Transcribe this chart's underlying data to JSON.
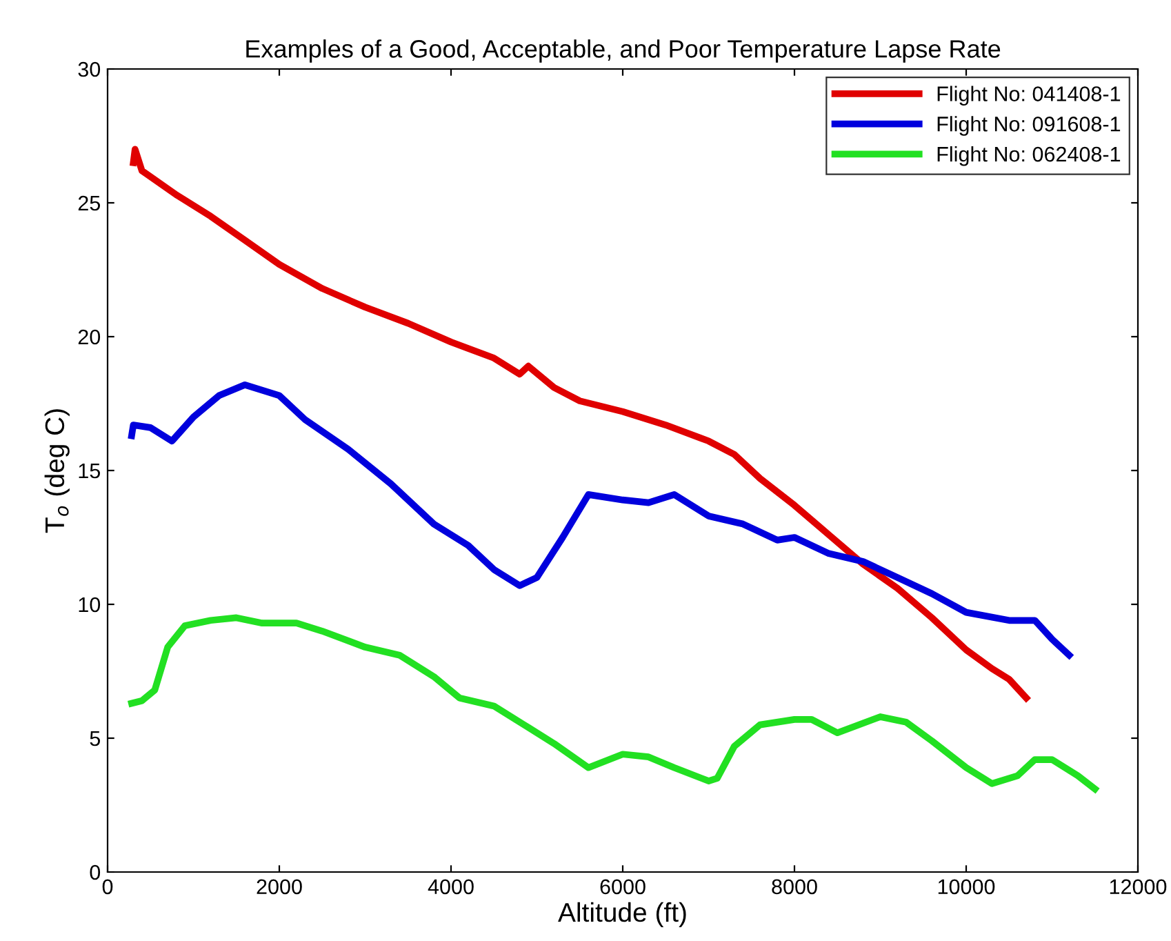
{
  "chart_data": {
    "type": "line",
    "title": "Examples of a Good, Acceptable, and Poor Temperature Lapse Rate",
    "xlabel": "Altitude (ft)",
    "ylabel": "T$_{o}$ (deg C)",
    "xlim": [
      0,
      12000
    ],
    "xticks": [
      0,
      2000,
      4000,
      6000,
      8000,
      10000,
      12000
    ],
    "ylim": [
      0,
      30
    ],
    "yticks": [
      0,
      5,
      10,
      15,
      20,
      25,
      30
    ],
    "grid": false,
    "legend": "top right",
    "line_style": "solid",
    "marker": "none",
    "series": [
      {
        "name": "Flight No: 041408-1",
        "color": "#e00000",
        "x": [
          300,
          320,
          400,
          800,
          1200,
          1600,
          2000,
          2500,
          3000,
          3500,
          4000,
          4500,
          4800,
          4900,
          5200,
          5500,
          6000,
          6500,
          7000,
          7300,
          7600,
          8000,
          8400,
          8800,
          9200,
          9600,
          10000,
          10300,
          10500,
          10700
        ],
        "values": [
          26.5,
          27.0,
          26.2,
          25.3,
          24.5,
          23.6,
          22.7,
          21.8,
          21.1,
          20.5,
          19.8,
          19.2,
          18.6,
          18.9,
          18.1,
          17.6,
          17.2,
          16.7,
          16.1,
          15.6,
          14.7,
          13.7,
          12.6,
          11.5,
          10.6,
          9.5,
          8.3,
          7.6,
          7.2,
          6.5
        ]
      },
      {
        "name": "Flight No: 091608-1",
        "color": "#0000dd",
        "x": [
          280,
          300,
          500,
          750,
          1000,
          1300,
          1600,
          2000,
          2300,
          2800,
          3300,
          3800,
          4200,
          4500,
          4800,
          5000,
          5300,
          5600,
          6000,
          6300,
          6600,
          7000,
          7400,
          7800,
          8000,
          8400,
          8800,
          9200,
          9600,
          10000,
          10500,
          10800,
          11000,
          11200
        ],
        "values": [
          16.3,
          16.7,
          16.6,
          16.1,
          17.0,
          17.8,
          18.2,
          17.8,
          16.9,
          15.8,
          14.5,
          13.0,
          12.2,
          11.3,
          10.7,
          11.0,
          12.5,
          14.1,
          13.9,
          13.8,
          14.1,
          13.3,
          13.0,
          12.4,
          12.5,
          11.9,
          11.6,
          11.0,
          10.4,
          9.7,
          9.4,
          9.4,
          8.7,
          8.1
        ]
      },
      {
        "name": "Flight No: 062408-1",
        "color": "#22e022",
        "x": [
          280,
          400,
          550,
          700,
          900,
          1200,
          1500,
          1800,
          2200,
          2500,
          3000,
          3400,
          3800,
          4100,
          4500,
          4900,
          5200,
          5600,
          6000,
          6300,
          6600,
          7000,
          7100,
          7300,
          7600,
          8000,
          8200,
          8500,
          9000,
          9300,
          9600,
          10000,
          10300,
          10600,
          10800,
          11000,
          11300,
          11500
        ],
        "values": [
          6.3,
          6.4,
          6.8,
          8.4,
          9.2,
          9.4,
          9.5,
          9.3,
          9.3,
          9.0,
          8.4,
          8.1,
          7.3,
          6.5,
          6.2,
          5.4,
          4.8,
          3.9,
          4.4,
          4.3,
          3.9,
          3.4,
          3.5,
          4.7,
          5.5,
          5.7,
          5.7,
          5.2,
          5.8,
          5.6,
          4.9,
          3.9,
          3.3,
          3.6,
          4.2,
          4.2,
          3.6,
          3.1
        ]
      }
    ]
  }
}
